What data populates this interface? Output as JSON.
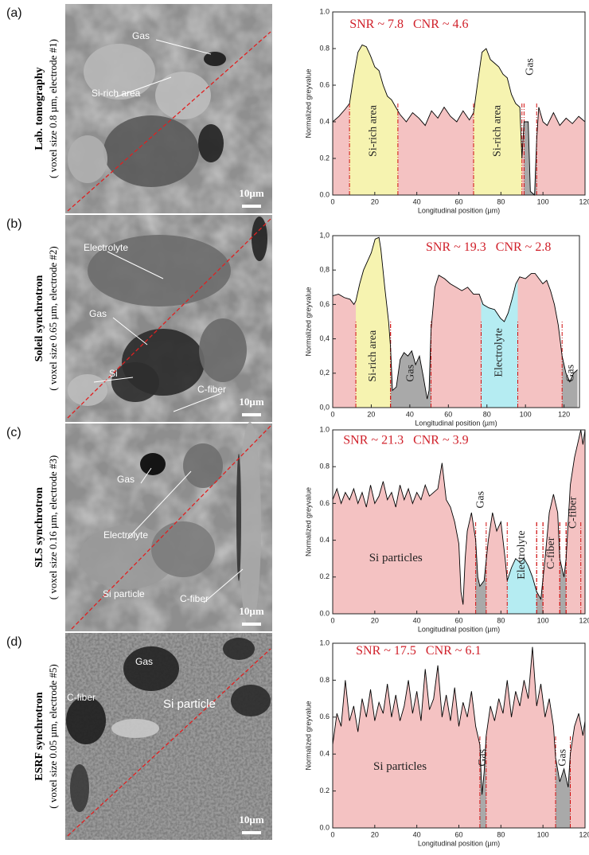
{
  "panels": [
    {
      "letter": "(a)",
      "technique": "Lab. tomography",
      "voxel": "( voxel size 0.8 µm, electrode #1)",
      "image_labels": [
        "Gas",
        "Si-rich area"
      ],
      "scale_bar": "10µm"
    },
    {
      "letter": "(b)",
      "technique": "Soleil synchrotron",
      "voxel": "( voxel size 0.65 µm, electrode #2)",
      "image_labels": [
        "Electrolyte",
        "Gas",
        "Si",
        "C-fiber"
      ],
      "scale_bar": "10µm"
    },
    {
      "letter": "(c)",
      "technique": "SLS synchrotron",
      "voxel": "( voxel size 0.16 µm, electrode #3)",
      "image_labels": [
        "Gas",
        "Electrolyte",
        "Si particle",
        "C-fiber"
      ],
      "scale_bar": "10µm"
    },
    {
      "letter": "(d)",
      "technique": "ESRF synchrotron",
      "voxel": "( voxel size 0.05 µm, electrode #5)",
      "image_labels": [
        "Gas",
        "C-fiber",
        "Si particle"
      ],
      "scale_bar": "10µm"
    }
  ],
  "chart_data": [
    {
      "type": "line",
      "annotation": "SNR ~ 7.8   CNR ~ 4.6",
      "xlabel": "Longitudinal position (µm)",
      "ylabel": "Normalized greyvalue",
      "x": [
        0,
        3,
        6,
        8,
        10,
        12,
        14,
        16,
        18,
        20,
        22,
        24,
        26,
        28,
        30,
        32,
        35,
        38,
        41,
        44,
        47,
        50,
        53,
        56,
        59,
        62,
        65,
        67,
        69,
        71,
        73,
        75,
        77,
        79,
        81,
        83,
        85,
        87,
        89,
        90,
        91,
        93,
        94,
        96,
        97,
        98,
        100,
        102,
        105,
        108,
        111,
        114,
        117,
        120
      ],
      "values": [
        0.4,
        0.43,
        0.47,
        0.5,
        0.65,
        0.78,
        0.82,
        0.81,
        0.76,
        0.7,
        0.68,
        0.6,
        0.54,
        0.52,
        0.48,
        0.44,
        0.4,
        0.45,
        0.42,
        0.38,
        0.46,
        0.42,
        0.48,
        0.43,
        0.4,
        0.46,
        0.41,
        0.45,
        0.62,
        0.78,
        0.8,
        0.74,
        0.72,
        0.7,
        0.66,
        0.64,
        0.55,
        0.5,
        0.48,
        0.2,
        0.4,
        0.4,
        0.02,
        0.0,
        0.3,
        0.48,
        0.4,
        0.38,
        0.45,
        0.38,
        0.42,
        0.39,
        0.43,
        0.4
      ],
      "color": "#000000",
      "fill": "#f4c2c2",
      "regions": [
        {
          "label": "Si-rich area",
          "x0": 8,
          "x1": 31,
          "color": "#f6f3b0"
        },
        {
          "label": "Si-rich area",
          "x0": 67,
          "x1": 90,
          "color": "#f6f3b0"
        },
        {
          "label": "Gas",
          "x0": 91,
          "x1": 97,
          "color": "#a9a9a9"
        }
      ],
      "xlim": [
        0,
        120
      ],
      "ylim": [
        0,
        1
      ],
      "xticks": [
        0,
        20,
        40,
        60,
        80,
        100,
        120
      ],
      "yticks": [
        {
          "value": 0,
          "label": "0.0"
        },
        0.2,
        0.4,
        0.6,
        0.8,
        {
          "value": 1,
          "label": "1.0"
        }
      ]
    },
    {
      "type": "line",
      "annotation": "SNR ~ 19.3   CNR ~ 2.8",
      "xlabel": "Longitudinal position (µm)",
      "ylabel": "Normalized greyvalue",
      "x": [
        0,
        3,
        6,
        9,
        11,
        12,
        14,
        16,
        18,
        20,
        22,
        24,
        25,
        27,
        29,
        30,
        31,
        33,
        35,
        37,
        39,
        41,
        43,
        45,
        47,
        49,
        50,
        51,
        53,
        55,
        58,
        61,
        64,
        67,
        70,
        73,
        76,
        78,
        81,
        84,
        87,
        89,
        91,
        93,
        95,
        97,
        100,
        103,
        105,
        107,
        109,
        111,
        113,
        115,
        117,
        119,
        121,
        123,
        125,
        127
      ],
      "values": [
        0.65,
        0.66,
        0.64,
        0.63,
        0.6,
        0.62,
        0.72,
        0.8,
        0.85,
        0.9,
        0.98,
        0.99,
        0.92,
        0.7,
        0.5,
        0.35,
        0.1,
        0.12,
        0.28,
        0.32,
        0.3,
        0.33,
        0.25,
        0.3,
        0.18,
        0.05,
        0.1,
        0.45,
        0.7,
        0.77,
        0.75,
        0.72,
        0.7,
        0.68,
        0.7,
        0.66,
        0.66,
        0.6,
        0.58,
        0.57,
        0.52,
        0.5,
        0.55,
        0.63,
        0.72,
        0.76,
        0.75,
        0.78,
        0.78,
        0.75,
        0.72,
        0.74,
        0.68,
        0.6,
        0.48,
        0.3,
        0.2,
        0.15,
        0.2,
        0.22
      ],
      "color": "#000000",
      "fill": "#f4c2c2",
      "regions": [
        {
          "label": "Si-rich area",
          "x0": 12,
          "x1": 30,
          "color": "#f6f3b0"
        },
        {
          "label": "Gas",
          "x0": 30,
          "x1": 51,
          "color": "#a9a9a9"
        },
        {
          "label": "Electrolyte",
          "x0": 77,
          "x1": 96,
          "color": "#b5ecf2"
        },
        {
          "label": "Gas",
          "x0": 119,
          "x1": 128,
          "color": "#a9a9a9"
        }
      ],
      "xlim": [
        0,
        128
      ],
      "ylim": [
        0,
        1
      ],
      "xticks": [
        0,
        20,
        40,
        60,
        80,
        100,
        120
      ],
      "yticks": [
        {
          "value": 0,
          "label": "0,0"
        },
        {
          "value": 0.2,
          "label": "0,2"
        },
        {
          "value": 0.4,
          "label": "0,4"
        },
        {
          "value": 0.6,
          "label": "0,6"
        },
        {
          "value": 0.8,
          "label": "0,8"
        },
        {
          "value": 1,
          "label": "1,0"
        }
      ]
    },
    {
      "type": "line",
      "annotation": "SNR ~ 21.3   CNR ~ 3.9",
      "xlabel": "Longitudinal position (µm)",
      "ylabel": "Normalized greyvalue",
      "bulk_label": "Si particles",
      "x": [
        0,
        2,
        4,
        6,
        8,
        10,
        12,
        14,
        16,
        18,
        20,
        22,
        24,
        26,
        28,
        30,
        32,
        34,
        36,
        38,
        40,
        42,
        44,
        46,
        48,
        50,
        52,
        54,
        56,
        58,
        60,
        61,
        62,
        63,
        64,
        66,
        68,
        69,
        70,
        72,
        74,
        76,
        78,
        80,
        82,
        83,
        85,
        87,
        89,
        91,
        93,
        95,
        97,
        99,
        101,
        103,
        105,
        107,
        108,
        110,
        111,
        113,
        115,
        117,
        118,
        119,
        120
      ],
      "values": [
        0.62,
        0.68,
        0.6,
        0.66,
        0.62,
        0.68,
        0.6,
        0.66,
        0.58,
        0.7,
        0.6,
        0.64,
        0.72,
        0.62,
        0.66,
        0.58,
        0.7,
        0.62,
        0.68,
        0.6,
        0.66,
        0.62,
        0.7,
        0.64,
        0.66,
        0.68,
        0.82,
        0.62,
        0.58,
        0.5,
        0.38,
        0.12,
        0.05,
        0.3,
        0.45,
        0.55,
        0.4,
        0.2,
        0.15,
        0.18,
        0.4,
        0.55,
        0.45,
        0.5,
        0.3,
        0.18,
        0.25,
        0.3,
        0.28,
        0.3,
        0.26,
        0.2,
        0.12,
        0.08,
        0.3,
        0.55,
        0.65,
        0.55,
        0.3,
        0.2,
        0.3,
        0.7,
        0.85,
        0.95,
        1.0,
        0.92,
        1.0
      ],
      "color": "#000000",
      "fill": "#f4c2c2",
      "regions": [
        {
          "label": "Gas",
          "x0": 68,
          "x1": 73,
          "color": "#a9a9a9"
        },
        {
          "label": "Electrolyte",
          "x0": 83,
          "x1": 97,
          "color": "#b5ecf2"
        },
        {
          "x0": 97,
          "x1": 100,
          "color": "#a9a9a9"
        },
        {
          "label": "C-fiber",
          "x0": 100,
          "x1": 108,
          "color": "#f4c2c2"
        },
        {
          "x0": 108,
          "x1": 111,
          "color": "#a9a9a9"
        },
        {
          "label": "C-fiber",
          "x0": 111,
          "x1": 118,
          "color": "#f4c2c2"
        }
      ],
      "xlim": [
        0,
        120
      ],
      "ylim": [
        0,
        1
      ],
      "xticks": [
        0,
        20,
        40,
        60,
        80,
        100,
        120
      ],
      "yticks": [
        {
          "value": 0,
          "label": "0.0"
        },
        0.2,
        0.4,
        0.6,
        0.8,
        {
          "value": 1,
          "label": "1.0"
        }
      ]
    },
    {
      "type": "line",
      "annotation": "SNR ~ 17.5   CNR ~ 6.1",
      "xlabel": "Longitudinal position (µm)",
      "ylabel": "Normalized greyvalue",
      "bulk_label": "Si particles",
      "x": [
        0,
        2,
        4,
        6,
        8,
        10,
        12,
        14,
        16,
        18,
        20,
        22,
        24,
        26,
        28,
        30,
        32,
        34,
        36,
        38,
        40,
        42,
        44,
        46,
        48,
        50,
        52,
        54,
        56,
        58,
        60,
        62,
        64,
        66,
        68,
        70,
        71,
        72,
        73,
        75,
        77,
        79,
        81,
        83,
        85,
        87,
        89,
        91,
        93,
        95,
        97,
        99,
        101,
        103,
        105,
        106,
        108,
        110,
        112,
        113,
        115,
        117,
        119,
        120
      ],
      "values": [
        0.45,
        0.62,
        0.55,
        0.8,
        0.58,
        0.66,
        0.52,
        0.7,
        0.6,
        0.75,
        0.58,
        0.68,
        0.62,
        0.78,
        0.6,
        0.72,
        0.58,
        0.66,
        0.8,
        0.62,
        0.74,
        0.58,
        0.86,
        0.64,
        0.7,
        0.88,
        0.6,
        0.72,
        0.58,
        0.76,
        0.55,
        0.68,
        0.6,
        0.74,
        0.55,
        0.45,
        0.18,
        0.3,
        0.5,
        0.66,
        0.58,
        0.7,
        0.62,
        0.8,
        0.6,
        0.74,
        0.66,
        0.8,
        0.7,
        0.98,
        0.66,
        0.78,
        0.6,
        0.7,
        0.55,
        0.38,
        0.25,
        0.32,
        0.22,
        0.4,
        0.55,
        0.62,
        0.5,
        0.58
      ],
      "color": "#000000",
      "fill": "#f4c2c2",
      "regions": [
        {
          "label": "Gas",
          "x0": 70,
          "x1": 73,
          "color": "#a9a9a9"
        },
        {
          "label": "Gas",
          "x0": 106,
          "x1": 113,
          "color": "#a9a9a9"
        }
      ],
      "xlim": [
        0,
        120
      ],
      "ylim": [
        0,
        1
      ],
      "xticks": [
        0,
        20,
        40,
        60,
        80,
        100,
        120
      ],
      "yticks": [
        {
          "value": 0,
          "label": "0.0"
        },
        0.2,
        0.4,
        0.6,
        0.8,
        {
          "value": 1,
          "label": "1.0"
        }
      ]
    }
  ]
}
